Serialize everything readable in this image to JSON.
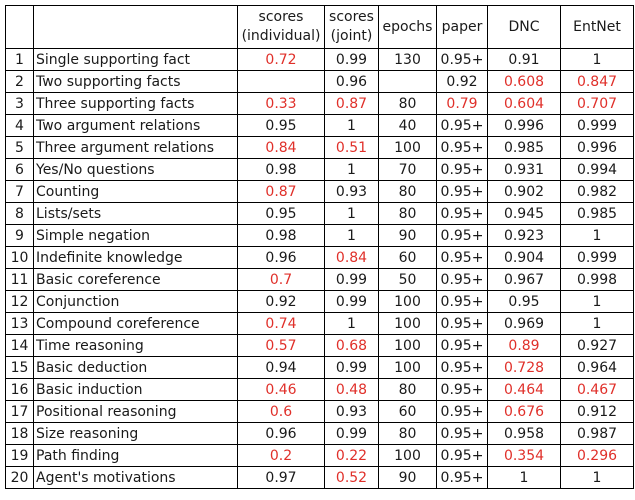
{
  "headers": {
    "index": "",
    "task": "",
    "scores_individual": "scores (individual)",
    "scores_joint": "scores (joint)",
    "epochs": "epochs",
    "paper": "paper",
    "dnc": "DNC",
    "entnet": "EntNet"
  },
  "colors": {
    "highlight": "#e0302a",
    "normal": "#1a1a1a"
  },
  "rows": [
    {
      "n": "1",
      "task": "Single supporting fact",
      "ind": "0.72",
      "joint": "0.99",
      "epochs": "130",
      "paper": "0.95+",
      "dnc": "0.91",
      "entnet": "1",
      "red": [
        "ind"
      ]
    },
    {
      "n": "2",
      "task": "Two supporting facts",
      "ind": "",
      "joint": "0.96",
      "epochs": "",
      "paper": "0.92",
      "dnc": "0.608",
      "entnet": "0.847",
      "red": [
        "dnc",
        "entnet"
      ]
    },
    {
      "n": "3",
      "task": "Three supporting facts",
      "ind": "0.33",
      "joint": "0.87",
      "epochs": "80",
      "paper": "0.79",
      "dnc": "0.604",
      "entnet": "0.707",
      "red": [
        "ind",
        "joint",
        "paper",
        "dnc",
        "entnet"
      ]
    },
    {
      "n": "4",
      "task": "Two argument relations",
      "ind": "0.95",
      "joint": "1",
      "epochs": "40",
      "paper": "0.95+",
      "dnc": "0.996",
      "entnet": "0.999",
      "red": []
    },
    {
      "n": "5",
      "task": "Three argument relations",
      "ind": "0.84",
      "joint": "0.51",
      "epochs": "100",
      "paper": "0.95+",
      "dnc": "0.985",
      "entnet": "0.996",
      "red": [
        "ind",
        "joint"
      ]
    },
    {
      "n": "6",
      "task": "Yes/No questions",
      "ind": "0.98",
      "joint": "1",
      "epochs": "70",
      "paper": "0.95+",
      "dnc": "0.931",
      "entnet": "0.994",
      "red": []
    },
    {
      "n": "7",
      "task": "Counting",
      "ind": "0.87",
      "joint": "0.93",
      "epochs": "80",
      "paper": "0.95+",
      "dnc": "0.902",
      "entnet": "0.982",
      "red": [
        "ind"
      ]
    },
    {
      "n": "8",
      "task": "Lists/sets",
      "ind": "0.95",
      "joint": "1",
      "epochs": "80",
      "paper": "0.95+",
      "dnc": "0.945",
      "entnet": "0.985",
      "red": []
    },
    {
      "n": "9",
      "task": "Simple negation",
      "ind": "0.98",
      "joint": "1",
      "epochs": "90",
      "paper": "0.95+",
      "dnc": "0.923",
      "entnet": "1",
      "red": []
    },
    {
      "n": "10",
      "task": "Indefinite knowledge",
      "ind": "0.96",
      "joint": "0.84",
      "epochs": "60",
      "paper": "0.95+",
      "dnc": "0.904",
      "entnet": "0.999",
      "red": [
        "joint"
      ]
    },
    {
      "n": "11",
      "task": "Basic coreference",
      "ind": "0.7",
      "joint": "0.99",
      "epochs": "50",
      "paper": "0.95+",
      "dnc": "0.967",
      "entnet": "0.998",
      "red": [
        "ind"
      ]
    },
    {
      "n": "12",
      "task": "Conjunction",
      "ind": "0.92",
      "joint": "0.99",
      "epochs": "100",
      "paper": "0.95+",
      "dnc": "0.95",
      "entnet": "1",
      "red": []
    },
    {
      "n": "13",
      "task": "Compound coreference",
      "ind": "0.74",
      "joint": "1",
      "epochs": "100",
      "paper": "0.95+",
      "dnc": "0.969",
      "entnet": "1",
      "red": [
        "ind"
      ]
    },
    {
      "n": "14",
      "task": "Time reasoning",
      "ind": "0.57",
      "joint": "0.68",
      "epochs": "100",
      "paper": "0.95+",
      "dnc": "0.89",
      "entnet": "0.927",
      "red": [
        "ind",
        "joint",
        "dnc"
      ]
    },
    {
      "n": "15",
      "task": "Basic deduction",
      "ind": "0.94",
      "joint": "0.99",
      "epochs": "100",
      "paper": "0.95+",
      "dnc": "0.728",
      "entnet": "0.964",
      "red": [
        "dnc"
      ]
    },
    {
      "n": "16",
      "task": "Basic induction",
      "ind": "0.46",
      "joint": "0.48",
      "epochs": "80",
      "paper": "0.95+",
      "dnc": "0.464",
      "entnet": "0.467",
      "red": [
        "ind",
        "joint",
        "dnc",
        "entnet"
      ]
    },
    {
      "n": "17",
      "task": "Positional reasoning",
      "ind": "0.6",
      "joint": "0.93",
      "epochs": "60",
      "paper": "0.95+",
      "dnc": "0.676",
      "entnet": "0.912",
      "red": [
        "ind",
        "dnc"
      ]
    },
    {
      "n": "18",
      "task": "Size reasoning",
      "ind": "0.96",
      "joint": "0.99",
      "epochs": "80",
      "paper": "0.95+",
      "dnc": "0.958",
      "entnet": "0.987",
      "red": []
    },
    {
      "n": "19",
      "task": "Path finding",
      "ind": "0.2",
      "joint": "0.22",
      "epochs": "100",
      "paper": "0.95+",
      "dnc": "0.354",
      "entnet": "0.296",
      "red": [
        "ind",
        "joint",
        "dnc",
        "entnet"
      ]
    },
    {
      "n": "20",
      "task": "Agent's motivations",
      "ind": "0.97",
      "joint": "0.52",
      "epochs": "90",
      "paper": "0.95+",
      "dnc": "1",
      "entnet": "1",
      "red": [
        "joint"
      ]
    }
  ]
}
